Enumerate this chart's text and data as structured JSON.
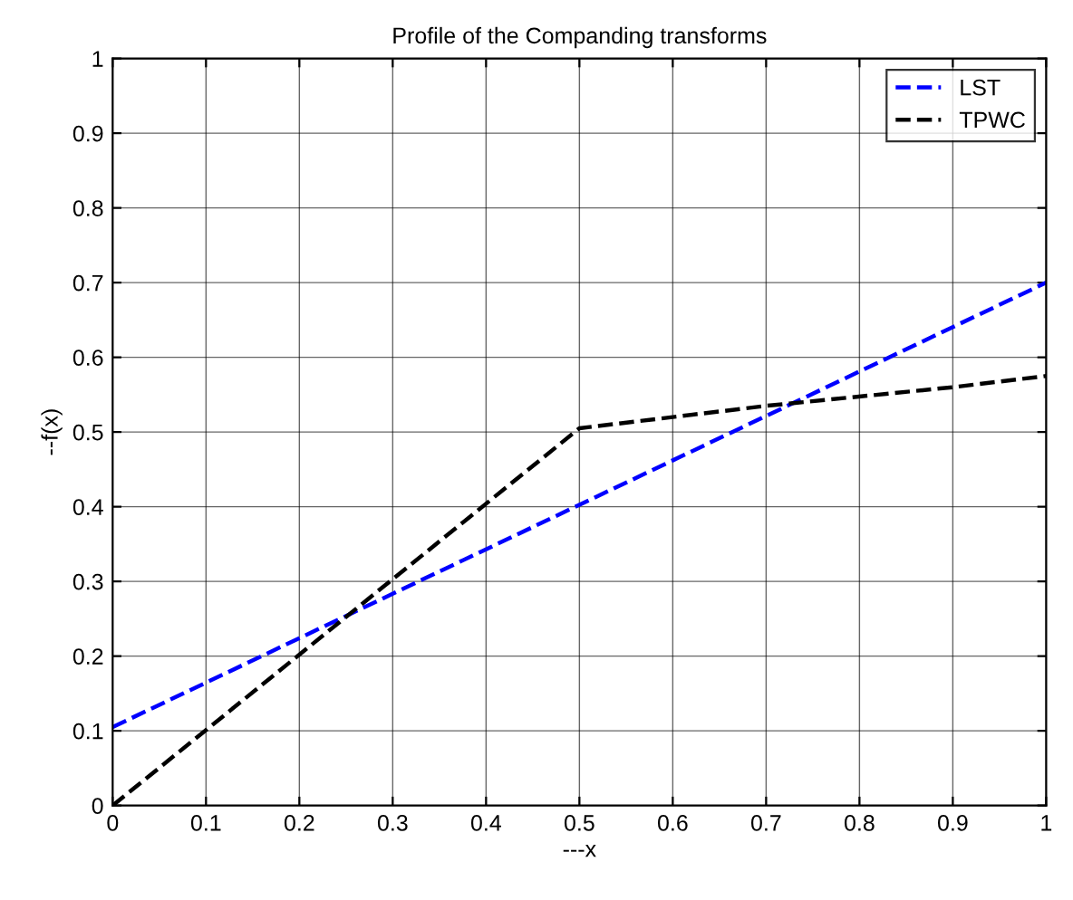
{
  "chart_data": {
    "type": "line",
    "title": "Profile of the Companding transforms",
    "xlabel": "---x",
    "ylabel": "--f(x)",
    "series": [
      {
        "name": "LST",
        "color": "#0000ff",
        "x": [
          0,
          1
        ],
        "values": [
          0.105,
          0.7
        ]
      },
      {
        "name": "TPWC",
        "color": "#000000",
        "x": [
          0,
          0.5,
          0.7,
          0.9,
          1
        ],
        "values": [
          0,
          0.505,
          0.535,
          0.56,
          0.575
        ]
      }
    ],
    "xlim": [
      0,
      1
    ],
    "ylim": [
      0,
      1
    ],
    "xticks": [
      0,
      0.1,
      0.2,
      0.3,
      0.4,
      0.5,
      0.6,
      0.7,
      0.8,
      0.9,
      1
    ],
    "yticks": [
      0,
      0.1,
      0.2,
      0.3,
      0.4,
      0.5,
      0.6,
      0.7,
      0.8,
      0.9,
      1
    ],
    "grid": true,
    "legend": "top right",
    "line_style": "dashed",
    "marker": "none"
  }
}
